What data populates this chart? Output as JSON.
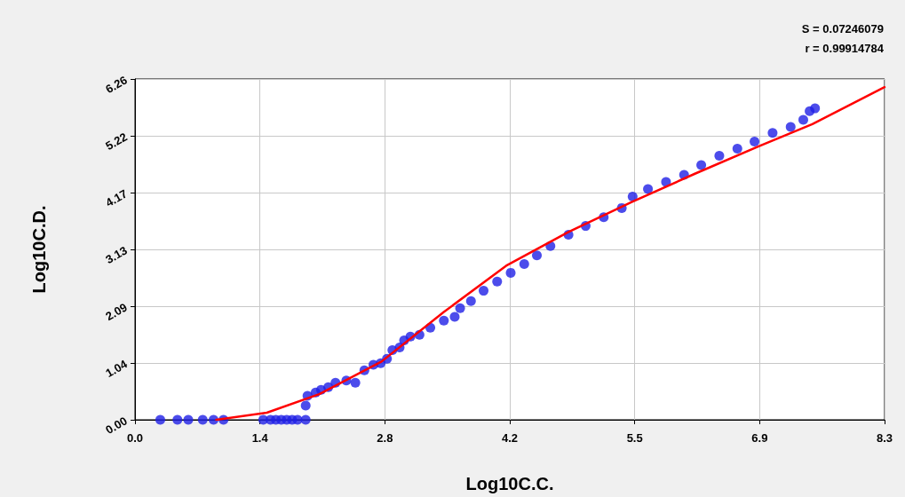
{
  "chart_data": {
    "type": "scatter",
    "xlabel": "Log10C.C.",
    "ylabel": "Log10C.D.",
    "xlim": [
      0,
      8.3
    ],
    "ylim": [
      0,
      6.26
    ],
    "xticks": [
      {
        "value": 0,
        "label": "0.0"
      },
      {
        "value": 1.3833,
        "label": "1.4"
      },
      {
        "value": 2.7667,
        "label": "2.8"
      },
      {
        "value": 4.15,
        "label": "4.2"
      },
      {
        "value": 5.5333,
        "label": "5.5"
      },
      {
        "value": 6.9167,
        "label": "6.9"
      },
      {
        "value": 8.3,
        "label": "8.3"
      }
    ],
    "yticks": [
      {
        "value": 0,
        "label": "0.00"
      },
      {
        "value": 1.0433,
        "label": "1.04"
      },
      {
        "value": 2.0867,
        "label": "2.09"
      },
      {
        "value": 3.13,
        "label": "3.13"
      },
      {
        "value": 4.1733,
        "label": "4.17"
      },
      {
        "value": 5.2167,
        "label": "5.22"
      },
      {
        "value": 6.26,
        "label": "6.26"
      }
    ],
    "grid": true,
    "annotations": [
      "S = 0.07246079",
      "r = 0.99914784"
    ],
    "series": [
      {
        "marker": "circle",
        "color": "#1f1fe6",
        "x": [
          0.28,
          0.47,
          0.59,
          0.75,
          0.87,
          0.98,
          1.42,
          1.5,
          1.56,
          1.62,
          1.68,
          1.74,
          1.8,
          1.89,
          1.89,
          1.91,
          2.0,
          2.06,
          2.14,
          2.22,
          2.34,
          2.44,
          2.54,
          2.64,
          2.72,
          2.79,
          2.85,
          2.93,
          2.98,
          3.05,
          3.15,
          3.27,
          3.42,
          3.54,
          3.6,
          3.72,
          3.86,
          4.01,
          4.16,
          4.31,
          4.45,
          4.6,
          4.8,
          4.99,
          5.19,
          5.39,
          5.51,
          5.68,
          5.88,
          6.08,
          6.27,
          6.47,
          6.67,
          6.86,
          7.06,
          7.26,
          7.4,
          7.47,
          7.53
        ],
        "values": [
          0,
          0,
          0,
          0,
          0,
          0,
          0,
          0,
          0,
          0,
          0,
          0,
          0,
          0,
          0.26,
          0.44,
          0.5,
          0.55,
          0.6,
          0.68,
          0.72,
          0.68,
          0.91,
          1.01,
          1.04,
          1.12,
          1.28,
          1.33,
          1.46,
          1.53,
          1.56,
          1.69,
          1.82,
          1.89,
          2.05,
          2.18,
          2.37,
          2.54,
          2.7,
          2.86,
          3.02,
          3.19,
          3.4,
          3.56,
          3.72,
          3.89,
          4.1,
          4.24,
          4.37,
          4.5,
          4.68,
          4.85,
          4.98,
          5.11,
          5.27,
          5.38,
          5.51,
          5.67,
          5.72
        ]
      },
      {
        "type": "line",
        "marker": "none",
        "color": "#ff0000",
        "x": [
          0.9,
          1.46,
          2.04,
          2.73,
          3.42,
          4.11,
          4.8,
          5.5,
          6.2,
          6.9,
          7.5,
          8.3
        ],
        "values": [
          0,
          0.13,
          0.47,
          1.07,
          1.98,
          2.83,
          3.45,
          4.0,
          4.52,
          5.02,
          5.43,
          6.11
        ]
      }
    ]
  }
}
